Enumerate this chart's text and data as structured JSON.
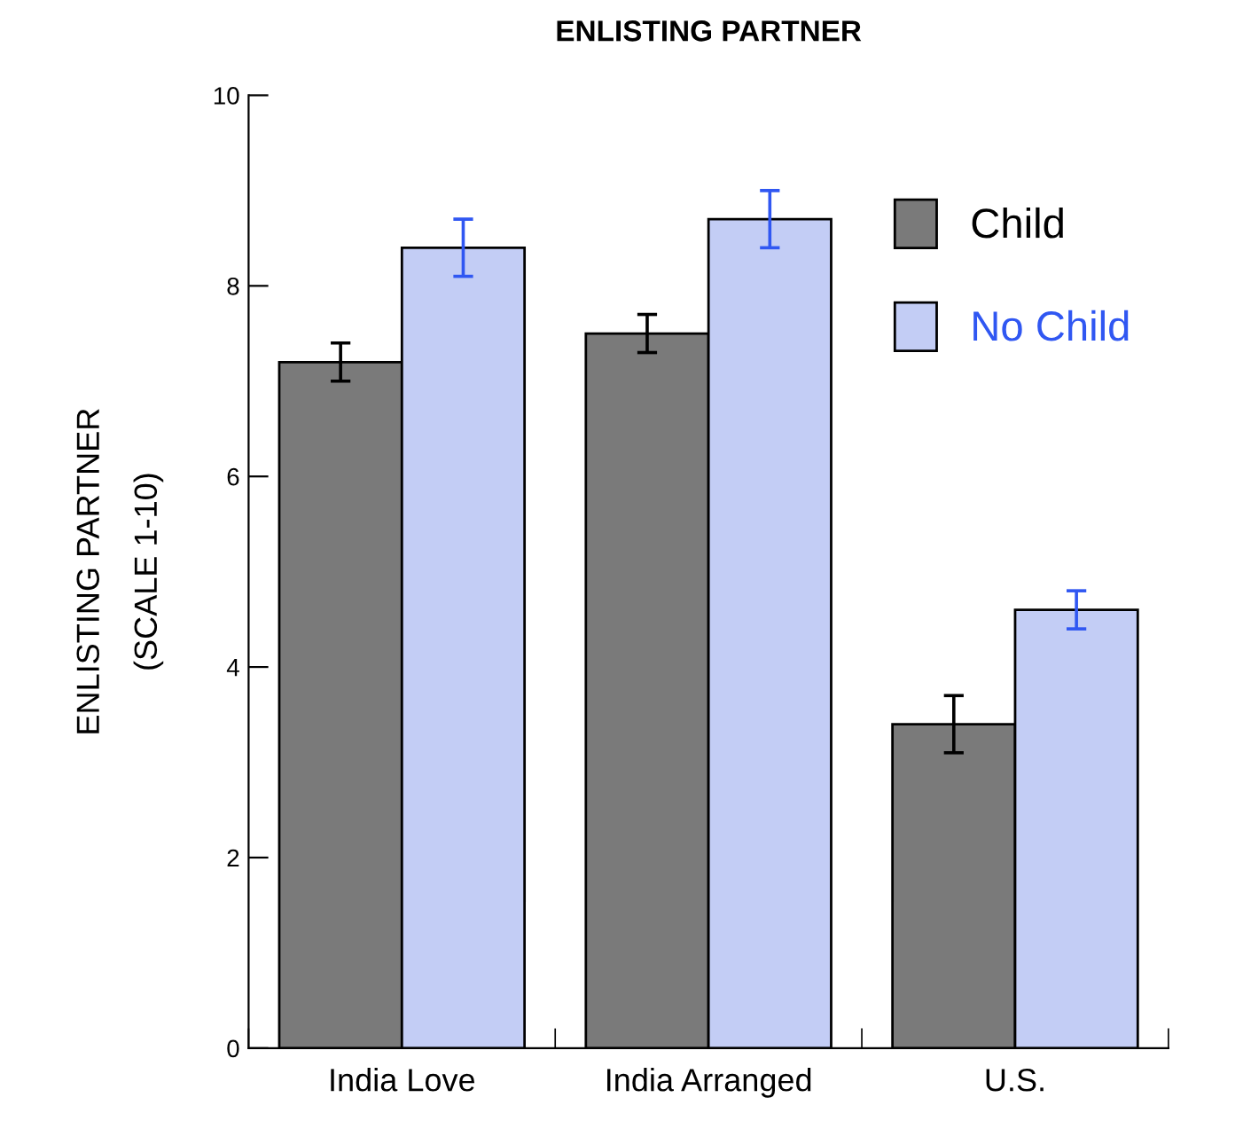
{
  "chart_data": {
    "type": "bar",
    "title": "ENLISTING PARTNER",
    "ylabel": "ENLISTING PARTNER\n(SCALE 1-10)",
    "categories": [
      "India Love",
      "India Arranged",
      "U.S."
    ],
    "series": [
      {
        "name": "Child",
        "color": "#7a7a7a",
        "values": [
          7.2,
          7.5,
          3.4
        ],
        "errors": [
          0.2,
          0.2,
          0.3
        ]
      },
      {
        "name": "No Child",
        "color": "#c3cdf5",
        "values": [
          8.4,
          8.7,
          4.6
        ],
        "errors": [
          0.3,
          0.3,
          0.2
        ]
      }
    ],
    "ylim": [
      0,
      10
    ],
    "yticks": [
      0,
      2,
      4,
      6,
      8,
      10
    ],
    "grid": false,
    "legend": "top right"
  }
}
